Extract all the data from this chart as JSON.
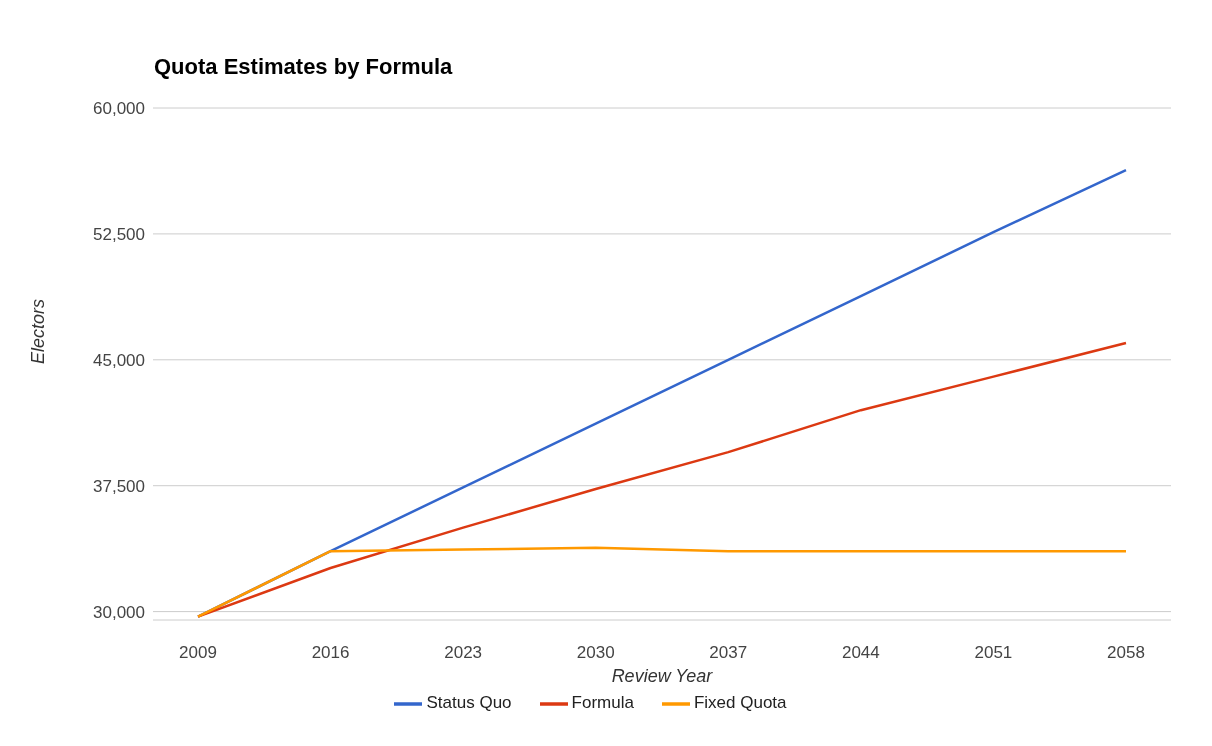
{
  "chart_data": {
    "type": "line",
    "title": "Quota Estimates by Formula",
    "xlabel": "Review Year",
    "ylabel": "Electors",
    "categories": [
      "2009",
      "2016",
      "2023",
      "2030",
      "2037",
      "2044",
      "2051",
      "2058"
    ],
    "series": [
      {
        "name": "Status Quo",
        "color": "#3366cc",
        "values": [
          29700,
          33600,
          37400,
          41200,
          45000,
          48800,
          52600,
          56300
        ]
      },
      {
        "name": "Formula",
        "color": "#dc3912",
        "values": [
          29700,
          32600,
          35000,
          37300,
          39500,
          42000,
          44000,
          46000
        ]
      },
      {
        "name": "Fixed Quota",
        "color": "#ff9900",
        "values": [
          29700,
          33600,
          33700,
          33800,
          33600,
          33600,
          33600,
          33600
        ]
      }
    ],
    "ylim": [
      29500,
      60000
    ],
    "yticks": [
      {
        "value": 30000,
        "label": "30,000"
      },
      {
        "value": 37500,
        "label": "37,500"
      },
      {
        "value": 45000,
        "label": "45,000"
      },
      {
        "value": 52500,
        "label": "52,500"
      },
      {
        "value": 60000,
        "label": "60,000"
      }
    ],
    "grid": "y",
    "legend": "bottom",
    "marker": "none",
    "line_style": "solid"
  }
}
